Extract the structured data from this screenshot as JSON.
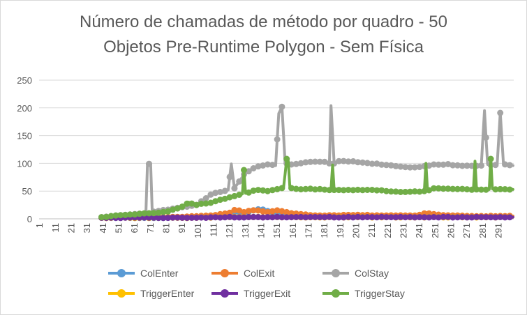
{
  "chart_data": {
    "type": "line",
    "title_lines": [
      "Número de chamadas de método por quadro - 50",
      "Objetos Pre-Runtime Polygon - Sem Física"
    ],
    "xlabel": "",
    "ylabel": "",
    "x_range": [
      1,
      300
    ],
    "x_tick_labels": [
      "1",
      "11",
      "21",
      "31",
      "41",
      "51",
      "61",
      "71",
      "81",
      "91",
      "101",
      "111",
      "121",
      "131",
      "141",
      "151",
      "161",
      "171",
      "181",
      "191",
      "201",
      "211",
      "221",
      "231",
      "241",
      "251",
      "261",
      "271",
      "281",
      "291"
    ],
    "ylim": [
      0,
      250
    ],
    "y_tick_labels": [
      "0",
      "50",
      "100",
      "150",
      "200",
      "250"
    ],
    "grid": "horizontal",
    "legend_position": "bottom",
    "series": [
      {
        "name": "ColEnter",
        "color": "#5b9bd5",
        "points": [
          [
            40,
            2
          ],
          [
            60,
            2
          ],
          [
            80,
            2
          ],
          [
            95,
            3
          ],
          [
            110,
            4
          ],
          [
            120,
            8
          ],
          [
            125,
            14
          ],
          [
            130,
            10
          ],
          [
            135,
            15
          ],
          [
            140,
            18
          ],
          [
            145,
            14
          ],
          [
            150,
            10
          ],
          [
            155,
            12
          ],
          [
            160,
            8
          ],
          [
            170,
            6
          ],
          [
            180,
            5
          ],
          [
            200,
            5
          ],
          [
            220,
            5
          ],
          [
            240,
            4
          ],
          [
            260,
            4
          ],
          [
            280,
            4
          ],
          [
            300,
            4
          ]
        ]
      },
      {
        "name": "ColExit",
        "color": "#ed7d31",
        "points": [
          [
            40,
            2
          ],
          [
            60,
            2
          ],
          [
            80,
            3
          ],
          [
            95,
            4
          ],
          [
            110,
            6
          ],
          [
            120,
            10
          ],
          [
            125,
            17
          ],
          [
            130,
            12
          ],
          [
            135,
            16
          ],
          [
            140,
            15
          ],
          [
            145,
            12
          ],
          [
            150,
            15
          ],
          [
            155,
            14
          ],
          [
            160,
            10
          ],
          [
            170,
            7
          ],
          [
            180,
            6
          ],
          [
            200,
            7
          ],
          [
            220,
            6
          ],
          [
            240,
            6
          ],
          [
            245,
            10
          ],
          [
            260,
            6
          ],
          [
            280,
            5
          ],
          [
            300,
            5
          ]
        ]
      },
      {
        "name": "ColStay",
        "color": "#a5a5a5",
        "points": [
          [
            40,
            3
          ],
          [
            50,
            6
          ],
          [
            60,
            8
          ],
          [
            68,
            10
          ],
          [
            69,
            99
          ],
          [
            71,
            99
          ],
          [
            72,
            12
          ],
          [
            80,
            16
          ],
          [
            90,
            20
          ],
          [
            100,
            25
          ],
          [
            110,
            45
          ],
          [
            120,
            52
          ],
          [
            122,
            99
          ],
          [
            124,
            55
          ],
          [
            130,
            80
          ],
          [
            135,
            90
          ],
          [
            140,
            95
          ],
          [
            145,
            98
          ],
          [
            150,
            96
          ],
          [
            152,
            190
          ],
          [
            154,
            202
          ],
          [
            156,
            100
          ],
          [
            160,
            98
          ],
          [
            170,
            102
          ],
          [
            180,
            103
          ],
          [
            184,
            100
          ],
          [
            185,
            204
          ],
          [
            187,
            100
          ],
          [
            190,
            104
          ],
          [
            200,
            103
          ],
          [
            210,
            100
          ],
          [
            220,
            97
          ],
          [
            230,
            93
          ],
          [
            240,
            93
          ],
          [
            250,
            98
          ],
          [
            260,
            98
          ],
          [
            270,
            95
          ],
          [
            280,
            96
          ],
          [
            282,
            195
          ],
          [
            284,
            98
          ],
          [
            290,
            97
          ],
          [
            292,
            191
          ],
          [
            294,
            98
          ],
          [
            300,
            96
          ]
        ]
      },
      {
        "name": "TriggerEnter",
        "color": "#ffc000",
        "points": [
          [
            40,
            2
          ],
          [
            60,
            2
          ],
          [
            80,
            2
          ],
          [
            100,
            2
          ],
          [
            120,
            3
          ],
          [
            140,
            3
          ],
          [
            160,
            3
          ],
          [
            180,
            3
          ],
          [
            200,
            3
          ],
          [
            220,
            3
          ],
          [
            240,
            3
          ],
          [
            260,
            3
          ],
          [
            280,
            3
          ],
          [
            300,
            3
          ]
        ]
      },
      {
        "name": "TriggerExit",
        "color": "#7030a0",
        "points": [
          [
            40,
            2
          ],
          [
            60,
            2
          ],
          [
            80,
            2
          ],
          [
            100,
            2
          ],
          [
            120,
            3
          ],
          [
            140,
            3
          ],
          [
            160,
            3
          ],
          [
            180,
            3
          ],
          [
            200,
            3
          ],
          [
            220,
            3
          ],
          [
            240,
            3
          ],
          [
            260,
            3
          ],
          [
            280,
            3
          ],
          [
            300,
            3
          ]
        ]
      },
      {
        "name": "TriggerStay",
        "color": "#70ad47",
        "points": [
          [
            40,
            3
          ],
          [
            50,
            6
          ],
          [
            60,
            8
          ],
          [
            70,
            10
          ],
          [
            80,
            12
          ],
          [
            90,
            20
          ],
          [
            95,
            30
          ],
          [
            100,
            25
          ],
          [
            110,
            30
          ],
          [
            120,
            38
          ],
          [
            125,
            42
          ],
          [
            129,
            45
          ],
          [
            130,
            88
          ],
          [
            131,
            46
          ],
          [
            135,
            50
          ],
          [
            140,
            52
          ],
          [
            145,
            50
          ],
          [
            150,
            52
          ],
          [
            155,
            56
          ],
          [
            157,
            108
          ],
          [
            158,
            104
          ],
          [
            159,
            56
          ],
          [
            165,
            53
          ],
          [
            170,
            54
          ],
          [
            180,
            53
          ],
          [
            185,
            52
          ],
          [
            186,
            97
          ],
          [
            187,
            52
          ],
          [
            190,
            52
          ],
          [
            200,
            52
          ],
          [
            210,
            52
          ],
          [
            220,
            50
          ],
          [
            230,
            49
          ],
          [
            240,
            49
          ],
          [
            244,
            50
          ],
          [
            245,
            100
          ],
          [
            246,
            50
          ],
          [
            250,
            55
          ],
          [
            260,
            54
          ],
          [
            270,
            53
          ],
          [
            275,
            52
          ],
          [
            276,
            104
          ],
          [
            277,
            53
          ],
          [
            285,
            53
          ],
          [
            286,
            108
          ],
          [
            287,
            54
          ],
          [
            300,
            53
          ]
        ]
      }
    ]
  }
}
